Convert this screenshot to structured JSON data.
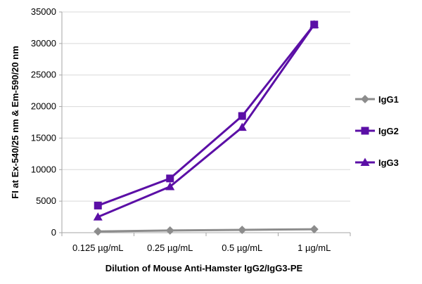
{
  "chart_data": {
    "type": "line",
    "title": "",
    "xlabel": "Dilution of Mouse Anti-Hamster IgG2/IgG3-PE",
    "ylabel": "FI at Ex-540/25 nm & Em-590/20 nm",
    "categories": [
      "0.125 µg/mL",
      "0.25 µg/mL",
      "0.5 µg/mL",
      "1 µg/mL"
    ],
    "y_ticks": [
      "0",
      "5000",
      "10000",
      "15000",
      "20000",
      "25000",
      "30000",
      "35000"
    ],
    "ylim": [
      0,
      35000
    ],
    "grid": "horizontal",
    "legend_position": "right",
    "series": [
      {
        "name": "IgG1",
        "values": [
          200,
          350,
          450,
          550
        ],
        "color": "#8c8c8c",
        "marker": "diamond"
      },
      {
        "name": "IgG2",
        "values": [
          4300,
          8600,
          18500,
          33000
        ],
        "color": "#5b0fa6",
        "marker": "square"
      },
      {
        "name": "IgG3",
        "values": [
          2500,
          7300,
          16700,
          33000
        ],
        "color": "#5b0fa6",
        "marker": "triangle"
      }
    ]
  }
}
